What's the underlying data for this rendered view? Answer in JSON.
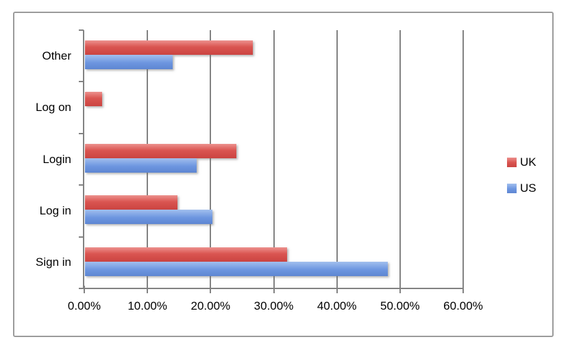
{
  "chart_data": {
    "type": "bar",
    "orientation": "horizontal",
    "title": "",
    "categories": [
      "Other",
      "Log on",
      "Login",
      "Log in",
      "Sign in"
    ],
    "series": [
      {
        "name": "UK",
        "color": "#d9534f",
        "values": [
          26.6,
          2.7,
          24.0,
          14.6,
          32.0
        ]
      },
      {
        "name": "US",
        "color": "#6d96e0",
        "values": [
          13.9,
          0,
          17.7,
          20.2,
          48.0
        ]
      }
    ],
    "x_tick_labels": [
      "0.00%",
      "10.00%",
      "20.00%",
      "30.00%",
      "40.00%",
      "50.00%",
      "60.00%"
    ],
    "xlim": [
      0,
      60
    ],
    "grid": true,
    "legend_position": "right-middle"
  },
  "legend": {
    "items": [
      {
        "label": "UK"
      },
      {
        "label": "US"
      }
    ]
  }
}
